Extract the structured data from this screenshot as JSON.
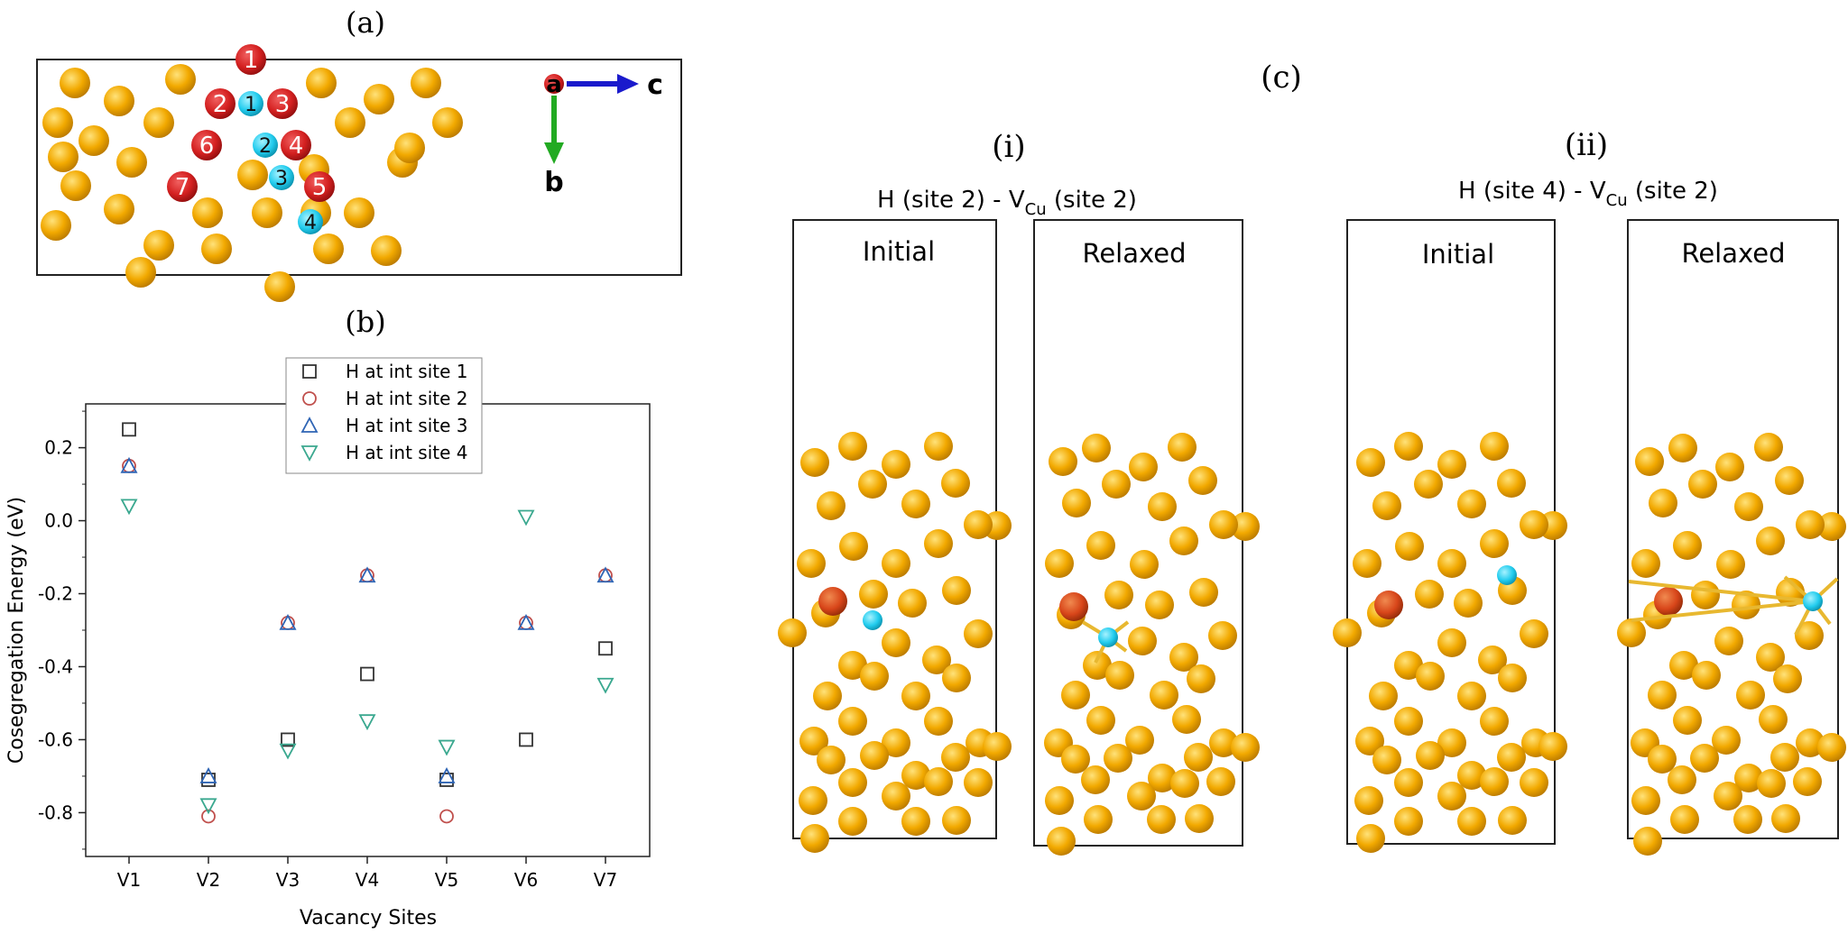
{
  "panel_a": {
    "label": "(a)",
    "cu_vacancy_labels": [
      "1",
      "2",
      "3",
      "4",
      "5",
      "6",
      "7"
    ],
    "h_site_labels": [
      "1",
      "2",
      "3",
      "4"
    ],
    "axes": {
      "a": "a",
      "b": "b",
      "c": "c"
    },
    "colors": {
      "cu": "#F2A900",
      "cu_vacancy": "#D42020",
      "h": "#22CCEE",
      "c_axis": "#1A1ACC",
      "b_axis": "#22AA22"
    }
  },
  "panel_b": {
    "label": "(b)",
    "chart_data": {
      "type": "scatter",
      "title": "",
      "xlabel": "Vacancy Sites",
      "ylabel": "Cosegregation Energy (eV)",
      "categories": [
        "V1",
        "V2",
        "V3",
        "V4",
        "V5",
        "V6",
        "V7"
      ],
      "ylim": [
        -0.92,
        0.32
      ],
      "yticks": [
        "0.2",
        "0.0",
        "-0.2",
        "-0.4",
        "-0.6",
        "-0.8"
      ],
      "ytick_values": [
        0.2,
        0.0,
        -0.2,
        -0.4,
        -0.6,
        -0.8
      ],
      "legend_position": "top-right",
      "series": [
        {
          "name": "H at int site 1",
          "marker": "square",
          "color": "#333333",
          "values": [
            0.25,
            -0.71,
            -0.6,
            -0.42,
            -0.71,
            -0.6,
            -0.35
          ]
        },
        {
          "name": "H at int site 2",
          "marker": "circle",
          "color": "#C0504D",
          "values": [
            0.15,
            -0.81,
            -0.28,
            -0.15,
            -0.81,
            -0.28,
            -0.15
          ]
        },
        {
          "name": "H at int site 3",
          "marker": "triangle-up",
          "color": "#2E64B4",
          "values": [
            0.15,
            -0.7,
            -0.28,
            -0.15,
            -0.7,
            -0.28,
            -0.15
          ]
        },
        {
          "name": "H at int site 4",
          "marker": "triangle-down",
          "color": "#3AA88F",
          "values": [
            0.04,
            -0.78,
            -0.63,
            -0.55,
            -0.62,
            0.01,
            -0.45
          ]
        }
      ]
    }
  },
  "panel_c": {
    "label": "(c)",
    "sub_i": {
      "label": "(i)",
      "title_main": "H (site 2) - V",
      "title_sub": "Cu",
      "title_tail": " (site 2)",
      "initial": "Initial",
      "relaxed": "Relaxed"
    },
    "sub_ii": {
      "label": "(ii)",
      "title_main": "H (site 4) - V",
      "title_sub": "Cu",
      "title_tail": " (site 2)",
      "initial": "Initial",
      "relaxed": "Relaxed"
    },
    "colors": {
      "vacancy_marker": "#D8461A",
      "h_bond": "#E8B830"
    }
  }
}
